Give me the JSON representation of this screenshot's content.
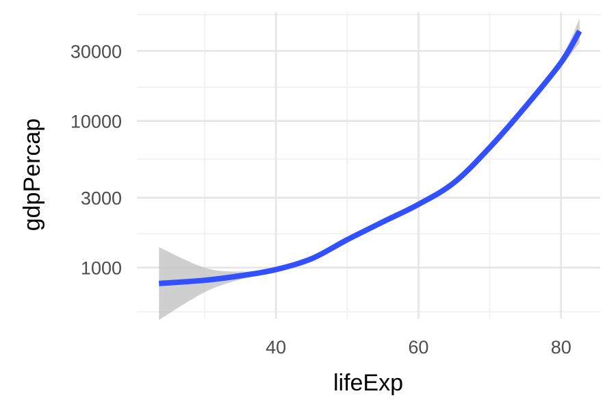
{
  "chart_data": {
    "type": "line",
    "xlabel": "lifeExp",
    "ylabel": "gdpPercap",
    "x_scale": "linear",
    "y_scale": "log10",
    "xlim": [
      20.5,
      85.5
    ],
    "ylim": [
      450,
      55000
    ],
    "x_ticks": [
      40,
      60,
      80
    ],
    "x_tick_labels": [
      "40",
      "60",
      "80"
    ],
    "x_minor_ticks": [
      30,
      50,
      70
    ],
    "y_ticks": [
      1000,
      3000,
      10000,
      30000
    ],
    "y_tick_labels": [
      "1000",
      "3000",
      "10000",
      "30000"
    ],
    "y_minor_ticks": [
      500,
      1700,
      5500,
      17000,
      53000
    ],
    "grid": true,
    "legend": "none",
    "colors": {
      "line": "#3350ff",
      "band": "#bfbfbf"
    },
    "series": [
      {
        "x": [
          23.6,
          30,
          35,
          40,
          45,
          50,
          55,
          60,
          65,
          70,
          75,
          80,
          82.6
        ],
        "y": [
          780,
          820,
          880,
          970,
          1150,
          1550,
          2050,
          2700,
          3800,
          6600,
          12500,
          25000,
          41000
        ],
        "y_lower": [
          440,
          680,
          830,
          950,
          1120,
          1500,
          1990,
          2640,
          3700,
          6400,
          12000,
          23500,
          34000
        ],
        "y_upper": [
          1380,
          1000,
          940,
          990,
          1180,
          1600,
          2110,
          2760,
          3900,
          6800,
          13000,
          27000,
          50000
        ]
      }
    ]
  }
}
